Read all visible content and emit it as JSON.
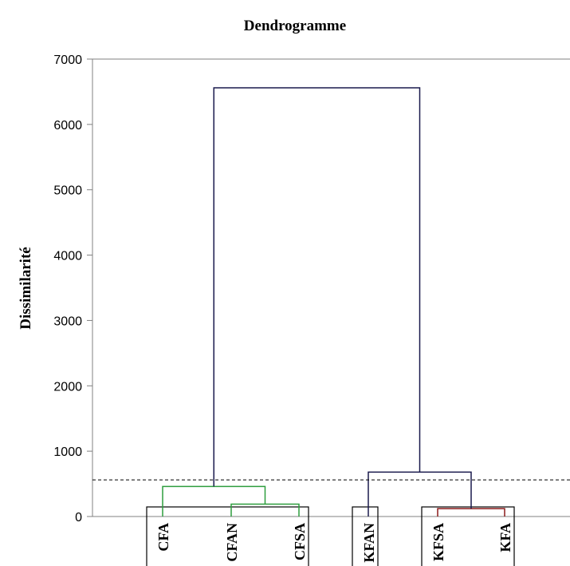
{
  "chart_data": {
    "type": "dendrogram",
    "title": "Dendrogramme",
    "ylabel": "Dissimilarité",
    "xlabel": "",
    "ylim": [
      0,
      7000
    ],
    "yticks": [
      0,
      1000,
      2000,
      3000,
      4000,
      5000,
      6000,
      7000
    ],
    "grid": false,
    "truncation_line": 560,
    "leaves": [
      "CFA",
      "CFAN",
      "CFSA",
      "KFAN",
      "KFSA",
      "KFA"
    ],
    "merges": [
      {
        "left": "KFSA",
        "right": "KFA",
        "height": 120,
        "color": "#8b1a1a"
      },
      {
        "left": "CFAN",
        "right": "CFSA",
        "height": 190,
        "color": "#2e9e3e"
      },
      {
        "left": "CFA",
        "right": "CFAN+CFSA",
        "height": 460,
        "color": "#2e9e3e"
      },
      {
        "left": "KFAN",
        "right": "KFSA+KFA",
        "height": 680,
        "color": "#1a1a4d"
      },
      {
        "left": "CFA+CFAN+CFSA",
        "right": "KFAN+KFSA+KFA",
        "height": 6560,
        "color": "#1a1a4d"
      }
    ],
    "clusters": [
      [
        "CFA",
        "CFAN",
        "CFSA"
      ],
      [
        "KFAN"
      ],
      [
        "KFSA",
        "KFA"
      ]
    ]
  }
}
